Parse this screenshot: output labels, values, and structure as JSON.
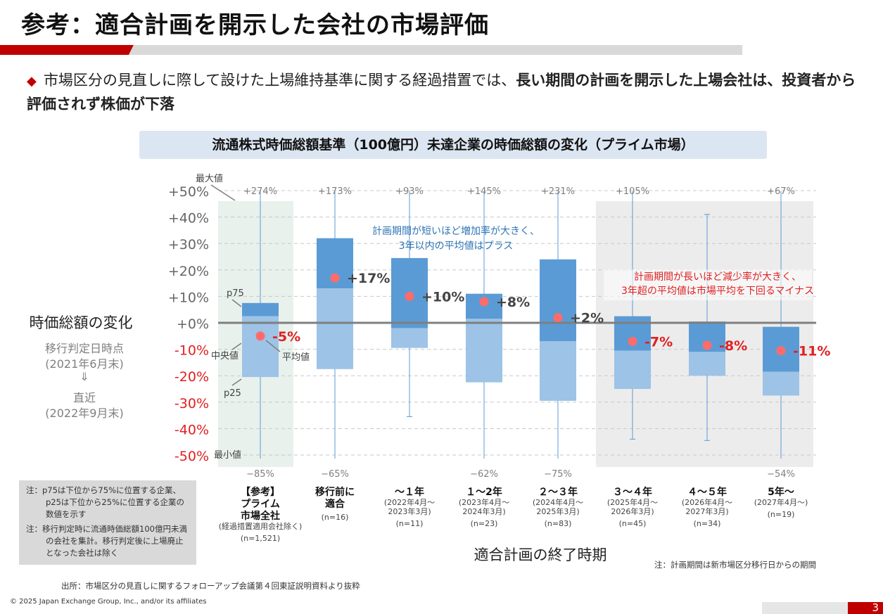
{
  "title": "参考：適合計画を開示した会社の市場評価",
  "bullet": {
    "marker": "◆",
    "text_normal": "市場区分の見直しに際して設けた上場維持基準に関する経過措置では、",
    "text_bold": "長い期間の計画を開示した上場会社は、投資者から評価されず株価が下落"
  },
  "chart_title": "流通株式時価総額基準（100億円）未達企業の時価総額の変化（プライム市場）",
  "left_labels": {
    "main": "時価総額の変化",
    "from": "移行判定日時点",
    "from_date": "(2021年6月末)",
    "arrow": "⇓",
    "to": "直近",
    "to_date": "(2022年9月末)"
  },
  "legend_labels": {
    "max": "最大値",
    "p75": "p75",
    "median": "中央値",
    "mean": "平均値",
    "p25": "p25",
    "min": "最小値"
  },
  "annotations": {
    "blue_1": "計画期間が短いほど増加率が大きく、",
    "blue_2": "3年以内の平均値はプラス",
    "red_1": "計画期間が長いほど減少率が大きく、",
    "red_2": "3年超の平均値は市場平均を下回るマイナス"
  },
  "xlabel": "適合計画の終了時期",
  "notes": [
    "注：p75は下位から75%に位置する企業、p25は下位から25%に位置する企業の数値を示す",
    "注：移行判定時に流通時価総額100億円未満の会社を集計。移行判定後に上場廃止となった会社は除く"
  ],
  "footnote_right": "注：計画期間は新市場区分移行日からの期間",
  "source": "出所：市場区分の見直しに関するフォローアップ会議第４回東証説明資料より抜粋",
  "copyright": "© 2025 Japan Exchange Group, Inc., and/or its affiliates",
  "page_number": "3",
  "colors": {
    "accent_red": "#c00000",
    "box_dark": "#5b9bd5",
    "box_light": "#9dc3e6",
    "mean_dot": "#ff6b6b",
    "annotation_blue": "#2e75b6",
    "annotation_red": "#e02020"
  },
  "chart_data": {
    "type": "boxplot",
    "ylim": [
      -50,
      50
    ],
    "yticks": [
      "+50%",
      "+40%",
      "+30%",
      "+20%",
      "+10%",
      "+0%",
      "-10%",
      "-20%",
      "-30%",
      "-40%",
      "-50%"
    ],
    "ytick_values": [
      50,
      40,
      30,
      20,
      10,
      0,
      -10,
      -20,
      -30,
      -40,
      -50
    ],
    "categories": [
      {
        "label": [
          "【参考】",
          "プライム",
          "市場全社"
        ],
        "sub": [
          "(経過措置適用会社除く)"
        ],
        "n": "(n=1,521)",
        "max_label": "+274%",
        "min_label": "−85%",
        "max": 274,
        "min": -85,
        "p75": 7.5,
        "median": 2.5,
        "p25": -20.5,
        "mean": -5,
        "mean_label": "-5%",
        "mean_color": "red"
      },
      {
        "label": [
          "移行前に",
          "適合"
        ],
        "sub": [],
        "n": "(n=16)",
        "max_label": "+173%",
        "min_label": "−65%",
        "max": 173,
        "min": -65,
        "p75": 32,
        "median": 13,
        "p25": -17.5,
        "mean": 17,
        "mean_label": "+17%",
        "mean_color": "dark"
      },
      {
        "label": [
          "～１年"
        ],
        "sub": [
          "(2022年4月～",
          "2023年3月)"
        ],
        "n": "(n=11)",
        "max_label": "+93%",
        "min_label": "",
        "max": 93,
        "min": -35.5,
        "p75": 24.5,
        "median": -2,
        "p25": -9.5,
        "mean": 10,
        "mean_label": "+10%",
        "mean_color": "dark"
      },
      {
        "label": [
          "１～2年"
        ],
        "sub": [
          "(2023年4月～",
          "2024年3月)"
        ],
        "n": "(n=23)",
        "max_label": "+145%",
        "min_label": "−62%",
        "max": 145,
        "min": -62,
        "p75": 11,
        "median": 1.5,
        "p25": -22.5,
        "mean": 8,
        "mean_label": "+8%",
        "mean_color": "dark"
      },
      {
        "label": [
          "２～３年"
        ],
        "sub": [
          "(2024年4月～",
          "2025年3月)"
        ],
        "n": "(n=83)",
        "max_label": "+231%",
        "min_label": "−75%",
        "max": 231,
        "min": -75,
        "p75": 24,
        "median": -7,
        "p25": -29.5,
        "mean": 2,
        "mean_label": "+2%",
        "mean_color": "dark"
      },
      {
        "label": [
          "３～４年"
        ],
        "sub": [
          "(2025年4月～",
          "2026年3月)"
        ],
        "n": "(n=45)",
        "max_label": "+105%",
        "min_label": "",
        "max": 105,
        "min": -44,
        "p75": 2.5,
        "median": -10.5,
        "p25": -25,
        "mean": -7,
        "mean_label": "-7%",
        "mean_color": "red"
      },
      {
        "label": [
          "４～５年"
        ],
        "sub": [
          "(2026年4月～",
          "2027年3月)"
        ],
        "n": "(n=34)",
        "max_label": "",
        "min_label": "",
        "max": 41,
        "min": -44.5,
        "p75": 0.5,
        "median": -11,
        "p25": -20,
        "mean": -8.5,
        "mean_label": "-8%",
        "mean_color": "red"
      },
      {
        "label": [
          "5年～"
        ],
        "sub": [
          "(2027年4月～)"
        ],
        "n": "(n=19)",
        "max_label": "+67%",
        "min_label": "−54%",
        "max": 67,
        "min": -54,
        "p75": -1.5,
        "median": -18.5,
        "p25": -27.5,
        "mean": -10.5,
        "mean_label": "-11%",
        "mean_color": "red"
      }
    ]
  }
}
